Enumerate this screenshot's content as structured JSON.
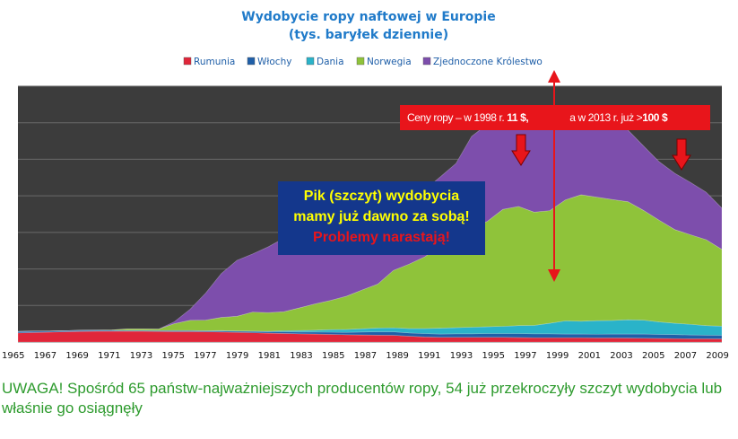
{
  "chart_data": {
    "type": "area",
    "stacked": true,
    "title": "Wydobycie ropy naftowej w Europie",
    "subtitle": "(tys. baryłek dziennie)",
    "legend_position": "top",
    "grid": true,
    "x": [
      1965,
      1966,
      1967,
      1968,
      1969,
      1970,
      1971,
      1972,
      1973,
      1974,
      1975,
      1976,
      1977,
      1978,
      1979,
      1980,
      1981,
      1982,
      1983,
      1984,
      1985,
      1986,
      1987,
      1988,
      1989,
      1990,
      1991,
      1992,
      1993,
      1994,
      1995,
      1996,
      1997,
      1998,
      1999,
      2000,
      2001,
      2002,
      2003,
      2004,
      2005,
      2006,
      2007,
      2008,
      2009,
      2010
    ],
    "x_tick_labels": [
      "1965",
      "1967",
      "1969",
      "1971",
      "1973",
      "1975",
      "1977",
      "1979",
      "1981",
      "1983",
      "1985",
      "1987",
      "1989",
      "1991",
      "1993",
      "1995",
      "1997",
      "1999",
      "2001",
      "2003",
      "2005",
      "2007",
      "2009"
    ],
    "ylim": [
      0,
      7000
    ],
    "series": [
      {
        "name": "Rumunia",
        "color": "#e0263a",
        "values": [
          250,
          260,
          270,
          280,
          290,
          295,
          295,
          295,
          295,
          290,
          285,
          285,
          280,
          275,
          265,
          255,
          245,
          235,
          225,
          220,
          210,
          200,
          195,
          190,
          185,
          160,
          140,
          130,
          130,
          130,
          130,
          130,
          125,
          120,
          120,
          120,
          120,
          115,
          115,
          110,
          105,
          100,
          95,
          90,
          90,
          85
        ]
      },
      {
        "name": "Włochy",
        "color": "#1f5fa8",
        "values": [
          40,
          40,
          30,
          30,
          30,
          30,
          25,
          20,
          20,
          20,
          25,
          25,
          25,
          30,
          30,
          35,
          40,
          45,
          50,
          55,
          60,
          65,
          80,
          90,
          95,
          90,
          90,
          90,
          95,
          95,
          100,
          100,
          105,
          105,
          105,
          100,
          100,
          100,
          105,
          110,
          115,
          110,
          110,
          105,
          100,
          100
        ]
      },
      {
        "name": "Dania",
        "color": "#2ab3c9",
        "values": [
          0,
          0,
          0,
          0,
          0,
          0,
          0,
          5,
          5,
          5,
          5,
          5,
          5,
          10,
          10,
          10,
          10,
          30,
          40,
          50,
          70,
          80,
          90,
          105,
          110,
          120,
          140,
          160,
          170,
          180,
          190,
          200,
          220,
          230,
          290,
          360,
          350,
          370,
          370,
          390,
          380,
          340,
          310,
          290,
          260,
          250
        ]
      },
      {
        "name": "Norwegia",
        "color": "#8fc33a",
        "values": [
          0,
          0,
          0,
          0,
          0,
          0,
          10,
          40,
          40,
          40,
          190,
          280,
          290,
          360,
          400,
          520,
          510,
          520,
          620,
          720,
          800,
          910,
          1060,
          1200,
          1570,
          1760,
          1960,
          2240,
          2460,
          2730,
          2880,
          3200,
          3260,
          3100,
          3080,
          3310,
          3460,
          3380,
          3310,
          3230,
          3000,
          2780,
          2560,
          2450,
          2350,
          2100
        ]
      },
      {
        "name": "Zjednoczone Królestwo",
        "color": "#7d4eac",
        "values": [
          0,
          0,
          0,
          0,
          0,
          0,
          0,
          0,
          0,
          0,
          50,
          300,
          740,
          1200,
          1530,
          1590,
          1800,
          2010,
          2200,
          2420,
          2500,
          2530,
          2410,
          2260,
          1820,
          1850,
          1830,
          1900,
          2030,
          2490,
          2660,
          2620,
          2560,
          2650,
          2760,
          2400,
          2300,
          2270,
          2110,
          1960,
          1760,
          1600,
          1540,
          1430,
          1300,
          1130
        ]
      }
    ]
  },
  "annotations": {
    "price_part1": "Ceny ropy – w 1998 r. ",
    "price_val1": "11 $,",
    "price_part2": "a w 2013 r. już >",
    "price_val2": "100 $",
    "peak_line1": "Pik (szczyt) wydobycia",
    "peak_line2": "mamy już dawno za sobą!",
    "peak_line3": "Problemy narastają!"
  },
  "footer": {
    "note": "UWAGA! Spośród 65 państw-najważniejszych producentów ropy, 54 już  przekroczyły szczyt wydobycia lub właśnie go osiągnęły"
  },
  "colors": {
    "plot_background": "#3c3c3c",
    "gridline": "#6a6a6a",
    "arrow_red": "#e8151b",
    "title_blue": "#1f7ac9",
    "note_green": "#2e9b2e"
  }
}
